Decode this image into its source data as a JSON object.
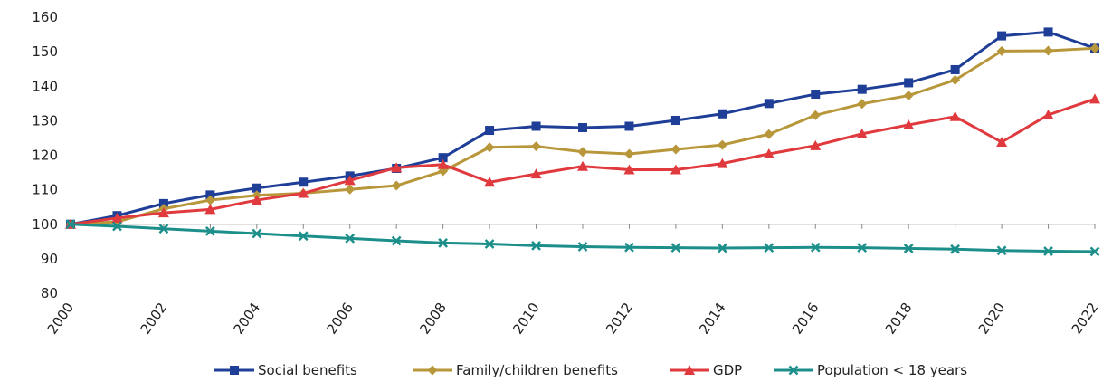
{
  "chart_data": {
    "type": "line",
    "x": [
      2000,
      2001,
      2002,
      2003,
      2004,
      2005,
      2006,
      2007,
      2008,
      2009,
      2010,
      2011,
      2012,
      2013,
      2014,
      2015,
      2016,
      2017,
      2018,
      2019,
      2020,
      2021,
      2022
    ],
    "x_tick_labels": [
      "2000",
      "2002",
      "2004",
      "2006",
      "2008",
      "2010",
      "2012",
      "2014",
      "2016",
      "2018",
      "2020",
      "2022"
    ],
    "y_tick_labels": [
      "80",
      "90",
      "100",
      "110",
      "120",
      "130",
      "140",
      "150",
      "160"
    ],
    "ylim": [
      80,
      160
    ],
    "grid": false,
    "legend_position": "bottom",
    "series": [
      {
        "name": "Social benefits",
        "color": "#1f3e97",
        "marker": "square",
        "values": [
          100,
          102.5,
          106,
          108.5,
          110.5,
          112.2,
          114,
          116.2,
          119.3,
          127.2,
          128.4,
          128,
          128.4,
          130.1,
          132,
          135,
          137.7,
          139.1,
          141,
          144.8,
          154.6,
          155.7,
          151
        ]
      },
      {
        "name": "Family/children benefits",
        "color": "#b8963a",
        "marker": "diamond",
        "values": [
          100,
          100.7,
          104.5,
          107,
          108.4,
          109,
          110.1,
          111.2,
          115.4,
          122.3,
          122.6,
          121,
          120.4,
          121.7,
          123,
          126.1,
          131.6,
          134.9,
          137.3,
          141.8,
          150.2,
          150.3,
          151
        ]
      },
      {
        "name": "GDP",
        "color": "#e03a3e",
        "marker": "triangle",
        "values": [
          100,
          101.8,
          103.3,
          104.3,
          107,
          109,
          112.7,
          116.4,
          117.3,
          112.2,
          114.6,
          116.8,
          115.8,
          115.8,
          117.6,
          120.4,
          122.8,
          126.2,
          128.8,
          131.2,
          123.8,
          131.7,
          136.3
        ]
      },
      {
        "name": "Population < 18 years",
        "color": "#1d8f8b",
        "marker": "x",
        "values": [
          100,
          99.4,
          98.7,
          98,
          97.3,
          96.6,
          95.9,
          95.2,
          94.6,
          94.3,
          93.8,
          93.5,
          93.3,
          93.2,
          93.1,
          93.2,
          93.3,
          93.2,
          93,
          92.8,
          92.4,
          92.2,
          92.1
        ]
      }
    ]
  }
}
